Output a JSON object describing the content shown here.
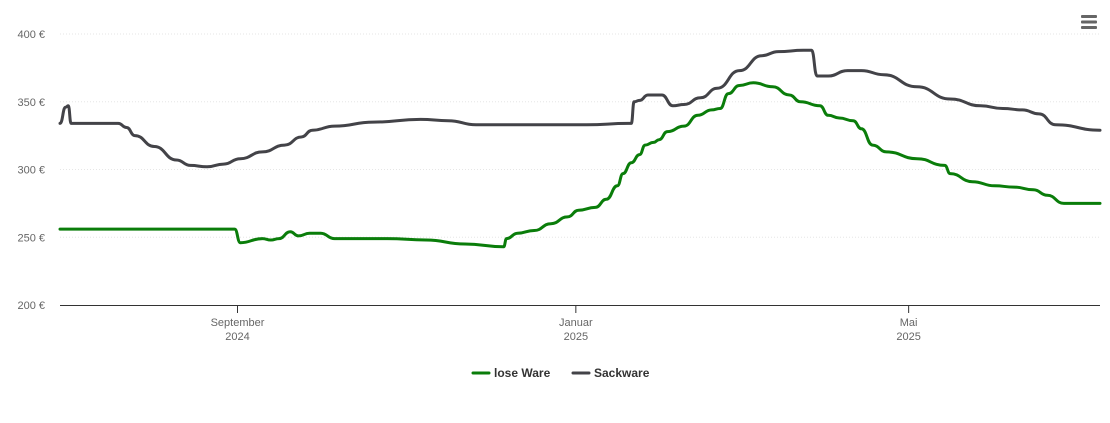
{
  "chart_data": {
    "type": "line",
    "y_unit": "€",
    "ylim": [
      200,
      400
    ],
    "yticks": [
      {
        "value": 200,
        "label": "200 €"
      },
      {
        "value": 250,
        "label": "250 €"
      },
      {
        "value": 300,
        "label": "300 €"
      },
      {
        "value": 350,
        "label": "350 €"
      },
      {
        "value": 400,
        "label": "400 €"
      }
    ],
    "xlim": [
      "2024-06-29",
      "2025-07-09"
    ],
    "xticks": [
      {
        "date": "2024-09-01",
        "line1": "September",
        "line2": "2024"
      },
      {
        "date": "2025-01-01",
        "line1": "Januar",
        "line2": "2025"
      },
      {
        "date": "2025-05-01",
        "line1": "Mai",
        "line2": "2025"
      }
    ],
    "grid": true,
    "legend_position": "bottom-center",
    "series": [
      {
        "name": "lose Ware",
        "color": "#0a7d0a",
        "points": [
          [
            "2024-06-29",
            256
          ],
          [
            "2024-08-29",
            256
          ],
          [
            "2024-08-31",
            256
          ],
          [
            "2024-09-02",
            246
          ],
          [
            "2024-09-10",
            249
          ],
          [
            "2024-09-13",
            248
          ],
          [
            "2024-09-16",
            249
          ],
          [
            "2024-09-20",
            254
          ],
          [
            "2024-09-23",
            251
          ],
          [
            "2024-09-27",
            253
          ],
          [
            "2024-10-01",
            253
          ],
          [
            "2024-10-06",
            249
          ],
          [
            "2024-10-25",
            249
          ],
          [
            "2024-11-08",
            248
          ],
          [
            "2024-11-22",
            245
          ],
          [
            "2024-12-06",
            243
          ],
          [
            "2024-12-07",
            249
          ],
          [
            "2024-12-11",
            253
          ],
          [
            "2024-12-17",
            255
          ],
          [
            "2024-12-23",
            260
          ],
          [
            "2024-12-29",
            265
          ],
          [
            "2025-01-02",
            270
          ],
          [
            "2025-01-08",
            272
          ],
          [
            "2025-01-12",
            278
          ],
          [
            "2025-01-16",
            288
          ],
          [
            "2025-01-18",
            297
          ],
          [
            "2025-01-21",
            305
          ],
          [
            "2025-01-24",
            311
          ],
          [
            "2025-01-26",
            318
          ],
          [
            "2025-01-29",
            320
          ],
          [
            "2025-01-31",
            322
          ],
          [
            "2025-02-03",
            328
          ],
          [
            "2025-02-09",
            332
          ],
          [
            "2025-02-14",
            340
          ],
          [
            "2025-02-19",
            344
          ],
          [
            "2025-02-22",
            345
          ],
          [
            "2025-02-25",
            356
          ],
          [
            "2025-03-01",
            362
          ],
          [
            "2025-03-06",
            364
          ],
          [
            "2025-03-13",
            361
          ],
          [
            "2025-03-19",
            355
          ],
          [
            "2025-03-23",
            350
          ],
          [
            "2025-03-30",
            347
          ],
          [
            "2025-04-02",
            340
          ],
          [
            "2025-04-06",
            338
          ],
          [
            "2025-04-11",
            336
          ],
          [
            "2025-04-14",
            330
          ],
          [
            "2025-04-18",
            318
          ],
          [
            "2025-04-23",
            313
          ],
          [
            "2025-05-04",
            308
          ],
          [
            "2025-05-14",
            303
          ],
          [
            "2025-05-16",
            297
          ],
          [
            "2025-05-24",
            291
          ],
          [
            "2025-06-01",
            288
          ],
          [
            "2025-06-08",
            287
          ],
          [
            "2025-06-15",
            285
          ],
          [
            "2025-06-20",
            281
          ],
          [
            "2025-06-26",
            275
          ],
          [
            "2025-07-09",
            275
          ]
        ]
      },
      {
        "name": "Sackware",
        "color": "#434348",
        "points": [
          [
            "2024-06-29",
            334
          ],
          [
            "2024-07-01",
            346
          ],
          [
            "2024-07-02",
            347
          ],
          [
            "2024-07-03",
            334
          ],
          [
            "2024-07-20",
            334
          ],
          [
            "2024-07-23",
            331
          ],
          [
            "2024-07-26",
            325
          ],
          [
            "2024-08-02",
            317
          ],
          [
            "2024-08-10",
            307
          ],
          [
            "2024-08-15",
            303
          ],
          [
            "2024-08-21",
            302
          ],
          [
            "2024-08-27",
            304
          ],
          [
            "2024-09-02",
            308
          ],
          [
            "2024-09-10",
            313
          ],
          [
            "2024-09-18",
            318
          ],
          [
            "2024-09-24",
            324
          ],
          [
            "2024-09-28",
            329
          ],
          [
            "2024-10-06",
            332
          ],
          [
            "2024-10-20",
            335
          ],
          [
            "2024-11-06",
            337
          ],
          [
            "2024-11-16",
            336
          ],
          [
            "2024-11-26",
            333
          ],
          [
            "2024-12-16",
            333
          ],
          [
            "2025-01-05",
            333
          ],
          [
            "2025-01-20",
            334
          ],
          [
            "2025-01-21",
            334
          ],
          [
            "2025-01-22",
            350
          ],
          [
            "2025-01-24",
            351
          ],
          [
            "2025-01-27",
            355
          ],
          [
            "2025-02-01",
            355
          ],
          [
            "2025-02-05",
            347
          ],
          [
            "2025-02-09",
            348
          ],
          [
            "2025-02-15",
            353
          ],
          [
            "2025-02-21",
            360
          ],
          [
            "2025-03-01",
            373
          ],
          [
            "2025-03-09",
            384
          ],
          [
            "2025-03-15",
            387
          ],
          [
            "2025-03-24",
            388
          ],
          [
            "2025-03-27",
            388
          ],
          [
            "2025-03-29",
            369
          ],
          [
            "2025-04-02",
            369
          ],
          [
            "2025-04-09",
            373
          ],
          [
            "2025-04-14",
            373
          ],
          [
            "2025-04-22",
            370
          ],
          [
            "2025-05-04",
            361
          ],
          [
            "2025-05-16",
            352
          ],
          [
            "2025-05-27",
            347
          ],
          [
            "2025-06-04",
            345
          ],
          [
            "2025-06-11",
            344
          ],
          [
            "2025-06-17",
            341
          ],
          [
            "2025-06-23",
            333
          ],
          [
            "2025-07-09",
            329
          ]
        ]
      }
    ]
  },
  "menu": {
    "icon": "hamburger-menu-icon"
  }
}
